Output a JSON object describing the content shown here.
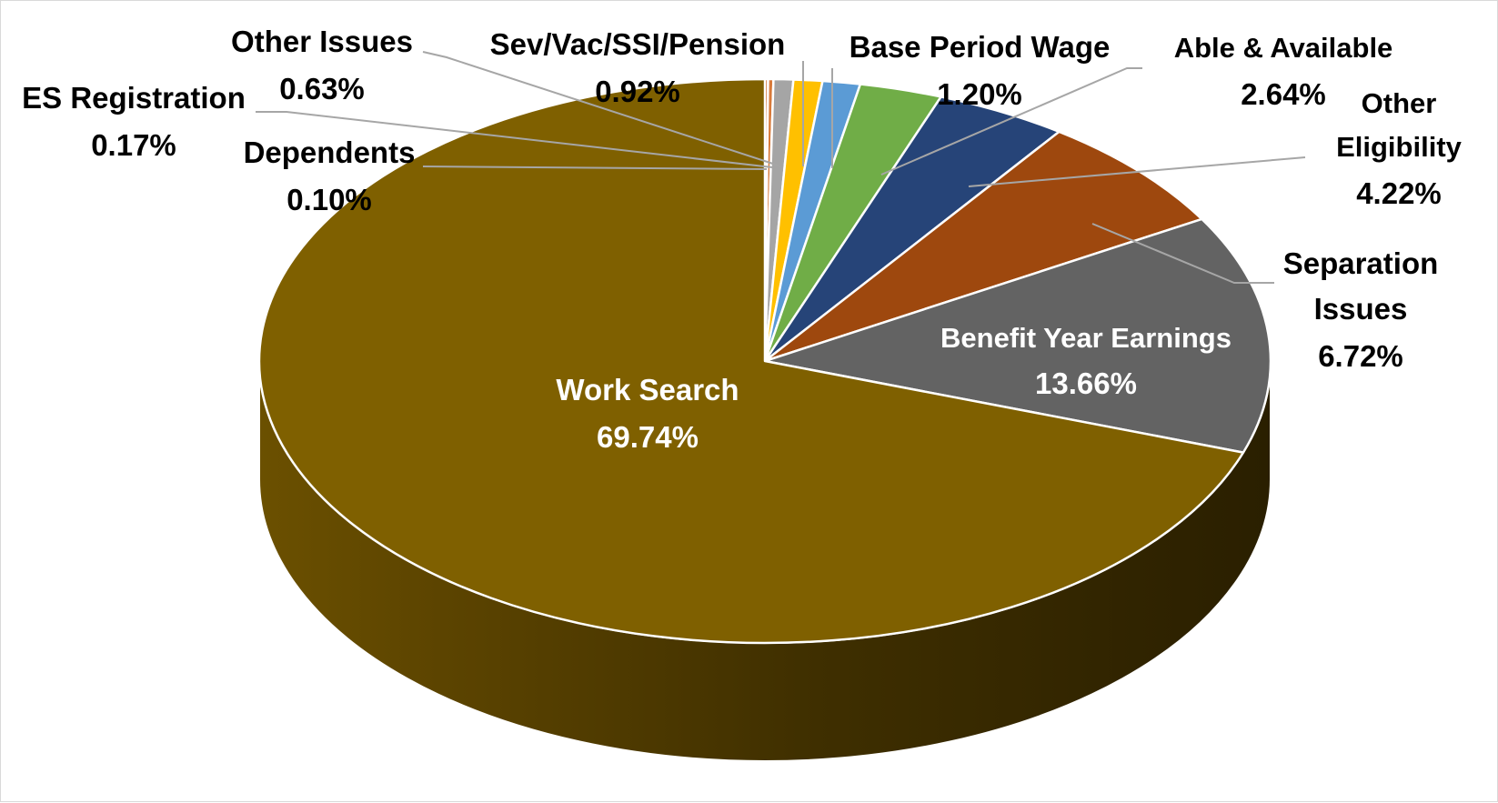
{
  "chart_data": {
    "type": "pie",
    "style": "3d",
    "title": "",
    "slices": [
      {
        "name": "Dependents",
        "value": 0.1,
        "label": "0.10%",
        "color": "#c55a11",
        "label_position": "outside"
      },
      {
        "name": "ES Registration",
        "value": 0.17,
        "label": "0.17%",
        "color": "#d87a3a",
        "label_position": "outside"
      },
      {
        "name": "Other Issues",
        "value": 0.63,
        "label": "0.63%",
        "color": "#a5a5a5",
        "label_position": "outside"
      },
      {
        "name": "Sev/Vac/SSI/Pension",
        "value": 0.92,
        "label": "0.92%",
        "color": "#ffc000",
        "label_position": "outside"
      },
      {
        "name": "Base Period Wage",
        "value": 1.2,
        "label": "1.20%",
        "color": "#5b9bd5",
        "label_position": "outside"
      },
      {
        "name": "Able & Available",
        "value": 2.64,
        "label": "2.64%",
        "color": "#70ad47",
        "label_position": "outside"
      },
      {
        "name": "Other Eligibility",
        "value": 4.22,
        "label": "4.22%",
        "color": "#264478",
        "label_position": "outside"
      },
      {
        "name": "Separation Issues",
        "value": 6.72,
        "label": "6.72%",
        "color": "#9e480e",
        "label_position": "outside"
      },
      {
        "name": "Benefit Year Earnings",
        "value": 13.66,
        "label": "13.66%",
        "color": "#636363",
        "label_position": "inside"
      },
      {
        "name": "Work Search",
        "value": 69.74,
        "label": "69.74%",
        "color": "#7f6000",
        "label_position": "inside"
      }
    ]
  },
  "labels": {
    "dependents": {
      "name": "Dependents",
      "pct": "0.10%"
    },
    "es_registration": {
      "name": "ES Registration",
      "pct": "0.17%"
    },
    "other_issues": {
      "name": "Other Issues",
      "pct": "0.63%"
    },
    "sev_vac": {
      "name": "Sev/Vac/SSI/Pension",
      "pct": "0.92%"
    },
    "base_period": {
      "name": "Base Period Wage",
      "pct": "1.20%"
    },
    "able_available": {
      "name": "Able & Available",
      "pct": "2.64%"
    },
    "other_eligibility": {
      "name1": "Other",
      "name2": "Eligibility",
      "pct": "4.22%"
    },
    "separation": {
      "name1": "Separation",
      "name2": "Issues",
      "pct": "6.72%"
    },
    "benefit_year": {
      "name": "Benefit Year Earnings",
      "pct": "13.66%"
    },
    "work_search": {
      "name": "Work Search",
      "pct": "69.74%"
    }
  }
}
